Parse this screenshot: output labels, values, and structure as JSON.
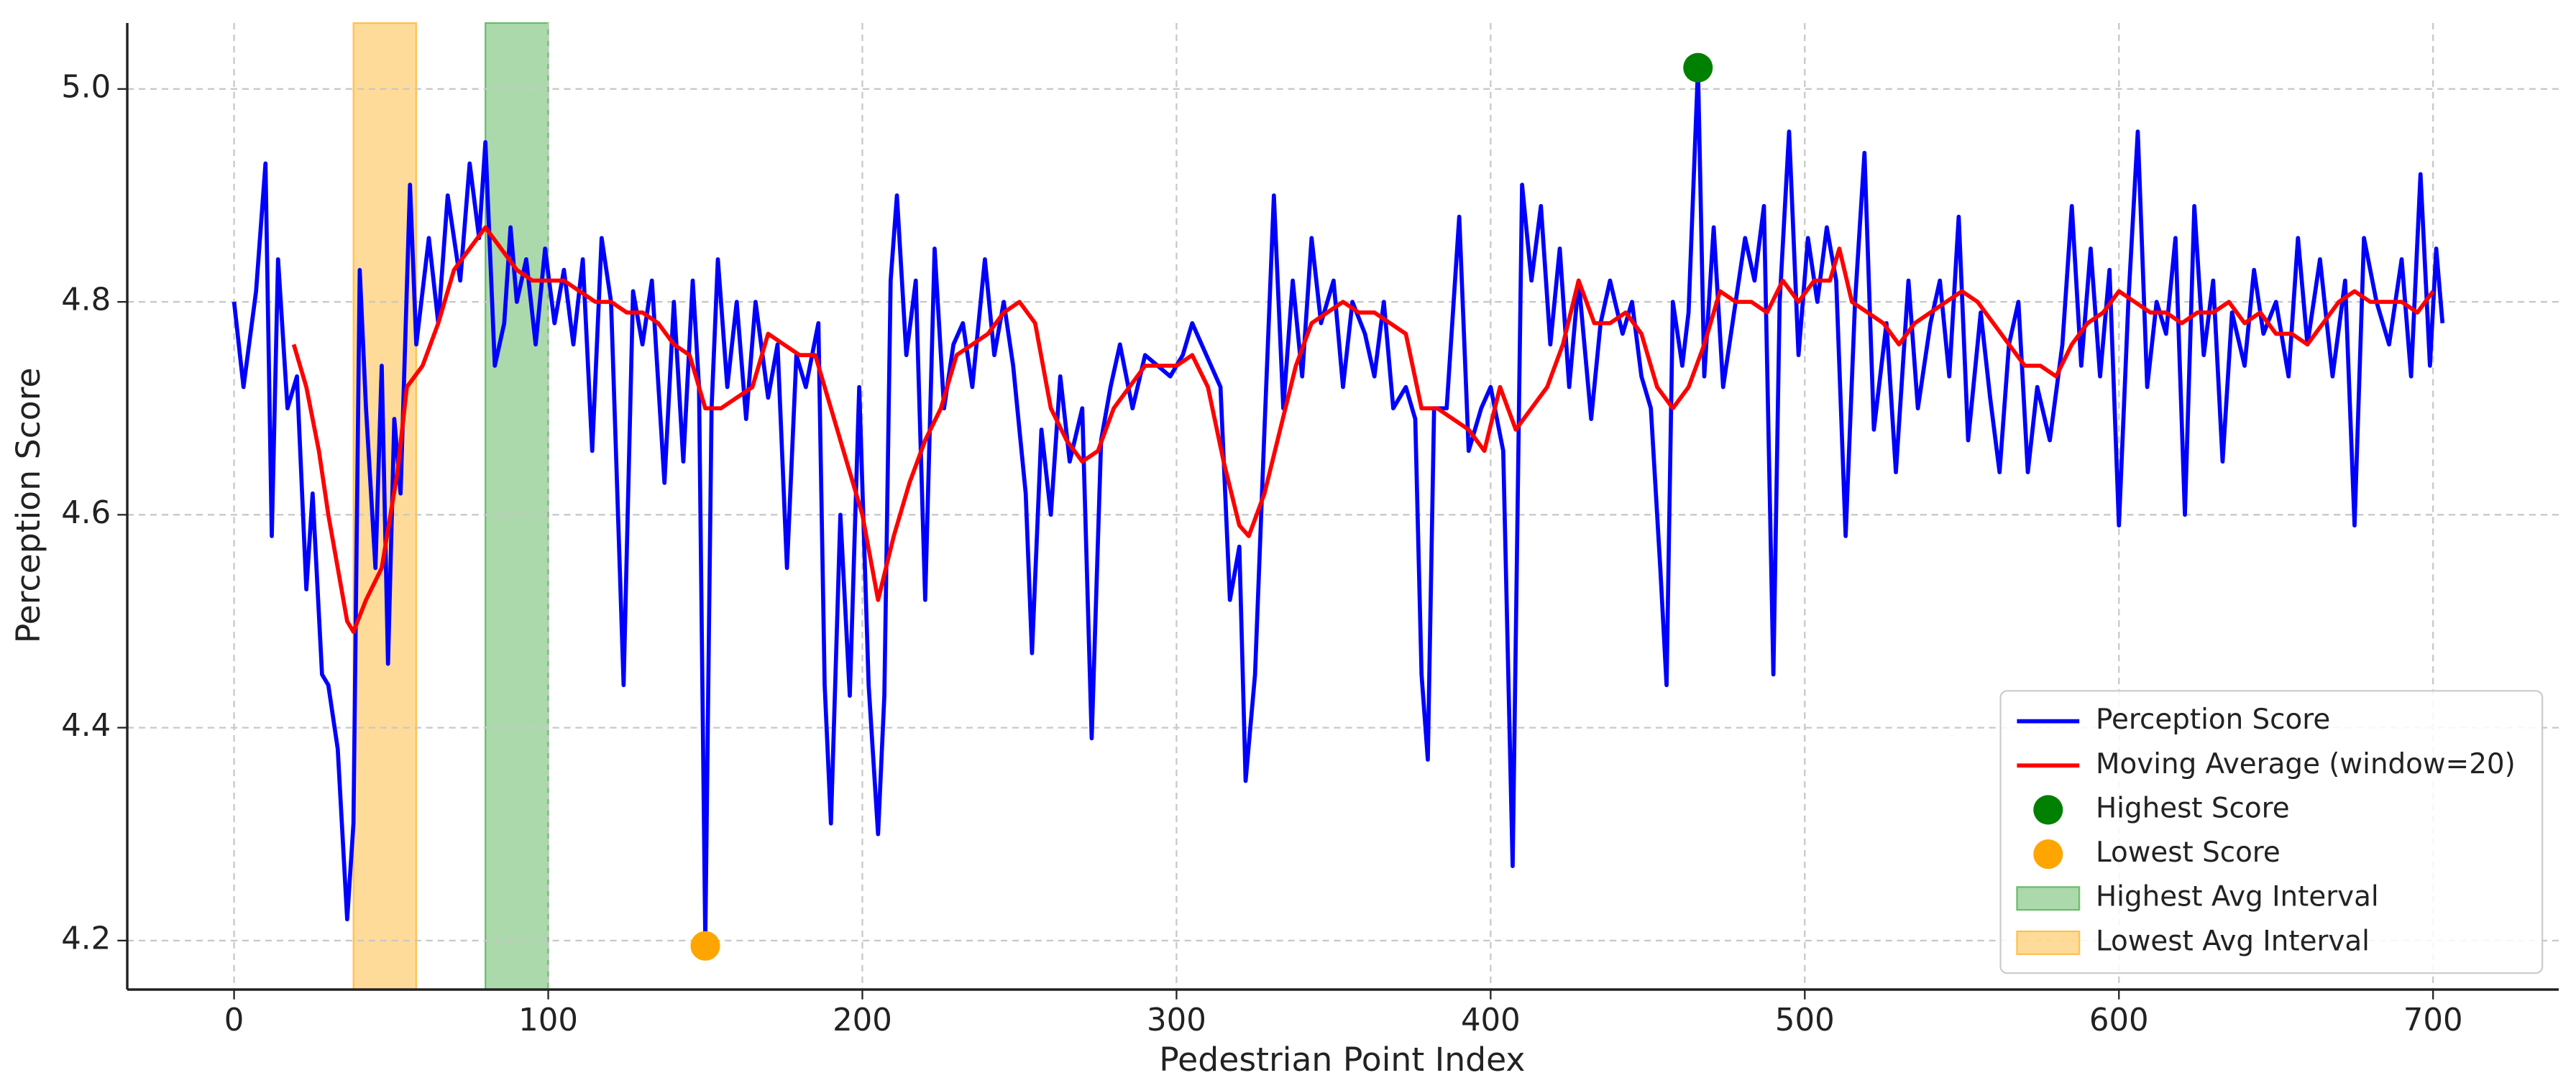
{
  "chart_data": {
    "type": "line",
    "x_label": "Pedestrian Point Index",
    "y_label": "Perception Score",
    "xlim": [
      -34,
      740
    ],
    "ylim": [
      4.154,
      5.062
    ],
    "xticks": [
      0,
      100,
      200,
      300,
      400,
      500,
      600,
      700
    ],
    "yticks": [
      4.2,
      4.4,
      4.6,
      4.8,
      {
        "value": 5,
        "label": "5.0"
      }
    ],
    "grid": true,
    "legend": "lower right",
    "series": [
      {
        "name": "Perception Score",
        "type": "line",
        "color": "#0000ff",
        "x": [
          0,
          3,
          7,
          10,
          12,
          14,
          17,
          20,
          23,
          25,
          28,
          30,
          33,
          36,
          38,
          40,
          42,
          45,
          47,
          49,
          51,
          53,
          56,
          58,
          62,
          65,
          68,
          72,
          75,
          78,
          80,
          83,
          86,
          88,
          90,
          93,
          96,
          99,
          102,
          105,
          108,
          111,
          114,
          117,
          120,
          124,
          127,
          130,
          133,
          137,
          140,
          143,
          146,
          148,
          150,
          152,
          154,
          157,
          160,
          163,
          166,
          170,
          173,
          176,
          179,
          182,
          186,
          188,
          190,
          193,
          196,
          199,
          202,
          205,
          207,
          209,
          211,
          214,
          217,
          220,
          223,
          226,
          229,
          232,
          235,
          239,
          242,
          245,
          248,
          252,
          254,
          257,
          260,
          263,
          266,
          270,
          273,
          276,
          279,
          282,
          286,
          290,
          294,
          298,
          302,
          305,
          308,
          311,
          314,
          317,
          320,
          322,
          325,
          328,
          331,
          334,
          337,
          340,
          343,
          346,
          350,
          353,
          356,
          360,
          363,
          366,
          369,
          373,
          376,
          378,
          380,
          382,
          386,
          390,
          393,
          397,
          400,
          404,
          407,
          410,
          413,
          416,
          419,
          422,
          425,
          428,
          432,
          435,
          438,
          442,
          445,
          448,
          451,
          454,
          456,
          458,
          461,
          463,
          466,
          468,
          471,
          474,
          478,
          481,
          484,
          487,
          490,
          492,
          495,
          498,
          501,
          504,
          507,
          510,
          513,
          516,
          519,
          522,
          526,
          529,
          533,
          536,
          540,
          543,
          546,
          549,
          552,
          556,
          559,
          562,
          565,
          568,
          571,
          574,
          578,
          582,
          585,
          588,
          591,
          594,
          597,
          600,
          603,
          606,
          609,
          612,
          615,
          618,
          621,
          624,
          627,
          630,
          633,
          636,
          640,
          643,
          646,
          650,
          654,
          657,
          660,
          664,
          668,
          672,
          675,
          678,
          682,
          686,
          690,
          693,
          696,
          699,
          701,
          703
        ],
        "values": [
          4.8,
          4.72,
          4.81,
          4.93,
          4.58,
          4.84,
          4.7,
          4.73,
          4.53,
          4.62,
          4.45,
          4.44,
          4.38,
          4.22,
          4.31,
          4.83,
          4.7,
          4.55,
          4.74,
          4.46,
          4.69,
          4.62,
          4.91,
          4.76,
          4.86,
          4.78,
          4.9,
          4.82,
          4.93,
          4.86,
          4.95,
          4.74,
          4.78,
          4.87,
          4.8,
          4.84,
          4.76,
          4.85,
          4.78,
          4.83,
          4.76,
          4.84,
          4.66,
          4.86,
          4.8,
          4.44,
          4.81,
          4.76,
          4.82,
          4.63,
          4.8,
          4.65,
          4.82,
          4.72,
          4.2,
          4.7,
          4.84,
          4.72,
          4.8,
          4.69,
          4.8,
          4.71,
          4.76,
          4.55,
          4.75,
          4.72,
          4.78,
          4.44,
          4.31,
          4.6,
          4.43,
          4.72,
          4.44,
          4.3,
          4.43,
          4.82,
          4.9,
          4.75,
          4.82,
          4.52,
          4.85,
          4.7,
          4.76,
          4.78,
          4.72,
          4.84,
          4.75,
          4.8,
          4.74,
          4.62,
          4.47,
          4.68,
          4.6,
          4.73,
          4.65,
          4.7,
          4.39,
          4.67,
          4.72,
          4.76,
          4.7,
          4.75,
          4.74,
          4.73,
          4.75,
          4.78,
          4.76,
          4.74,
          4.72,
          4.52,
          4.57,
          4.35,
          4.45,
          4.68,
          4.9,
          4.7,
          4.82,
          4.73,
          4.86,
          4.78,
          4.82,
          4.72,
          4.8,
          4.77,
          4.73,
          4.8,
          4.7,
          4.72,
          4.69,
          4.45,
          4.37,
          4.7,
          4.7,
          4.88,
          4.66,
          4.7,
          4.72,
          4.66,
          4.27,
          4.91,
          4.82,
          4.89,
          4.76,
          4.85,
          4.72,
          4.82,
          4.69,
          4.78,
          4.82,
          4.77,
          4.8,
          4.73,
          4.7,
          4.55,
          4.44,
          4.8,
          4.74,
          4.79,
          5.02,
          4.73,
          4.87,
          4.72,
          4.8,
          4.86,
          4.82,
          4.89,
          4.45,
          4.8,
          4.96,
          4.75,
          4.86,
          4.8,
          4.87,
          4.82,
          4.58,
          4.8,
          4.94,
          4.68,
          4.78,
          4.64,
          4.82,
          4.7,
          4.78,
          4.82,
          4.73,
          4.88,
          4.67,
          4.79,
          4.71,
          4.64,
          4.76,
          4.8,
          4.64,
          4.72,
          4.67,
          4.76,
          4.89,
          4.74,
          4.85,
          4.73,
          4.83,
          4.59,
          4.8,
          4.96,
          4.72,
          4.8,
          4.77,
          4.86,
          4.6,
          4.89,
          4.75,
          4.82,
          4.65,
          4.79,
          4.74,
          4.83,
          4.77,
          4.8,
          4.73,
          4.86,
          4.76,
          4.84,
          4.73,
          4.82,
          4.59,
          4.86,
          4.8,
          4.76,
          4.84,
          4.73,
          4.92,
          4.74,
          4.85,
          4.78
        ]
      },
      {
        "name": "Moving Average (window=20)",
        "type": "line",
        "color": "#ff0000",
        "x": [
          19,
          23,
          27,
          30,
          33,
          36,
          38,
          42,
          47,
          52,
          55,
          60,
          65,
          70,
          75,
          80,
          85,
          90,
          95,
          100,
          105,
          110,
          115,
          120,
          125,
          130,
          135,
          140,
          145,
          150,
          155,
          160,
          165,
          170,
          175,
          180,
          185,
          190,
          195,
          200,
          205,
          210,
          215,
          220,
          225,
          230,
          235,
          240,
          245,
          250,
          255,
          260,
          265,
          270,
          275,
          280,
          285,
          290,
          295,
          300,
          305,
          310,
          315,
          320,
          323,
          328,
          333,
          338,
          343,
          348,
          353,
          358,
          363,
          368,
          373,
          378,
          383,
          388,
          393,
          398,
          403,
          408,
          413,
          418,
          423,
          428,
          433,
          438,
          443,
          448,
          453,
          458,
          463,
          468,
          473,
          478,
          483,
          488,
          493,
          498,
          503,
          508,
          511,
          515,
          520,
          525,
          530,
          535,
          540,
          545,
          550,
          555,
          560,
          565,
          570,
          575,
          580,
          585,
          590,
          595,
          600,
          605,
          610,
          615,
          620,
          625,
          630,
          635,
          640,
          645,
          650,
          655,
          660,
          665,
          670,
          675,
          680,
          685,
          690,
          695,
          700
        ],
        "values": [
          4.76,
          4.72,
          4.66,
          4.6,
          4.55,
          4.5,
          4.49,
          4.52,
          4.55,
          4.64,
          4.72,
          4.74,
          4.78,
          4.83,
          4.85,
          4.87,
          4.85,
          4.83,
          4.82,
          4.82,
          4.82,
          4.81,
          4.8,
          4.8,
          4.79,
          4.79,
          4.78,
          4.76,
          4.75,
          4.7,
          4.7,
          4.71,
          4.72,
          4.77,
          4.76,
          4.75,
          4.75,
          4.7,
          4.65,
          4.6,
          4.52,
          4.58,
          4.63,
          4.67,
          4.7,
          4.75,
          4.76,
          4.77,
          4.79,
          4.8,
          4.78,
          4.7,
          4.67,
          4.65,
          4.66,
          4.7,
          4.72,
          4.74,
          4.74,
          4.74,
          4.75,
          4.72,
          4.65,
          4.59,
          4.58,
          4.62,
          4.68,
          4.74,
          4.78,
          4.79,
          4.8,
          4.79,
          4.79,
          4.78,
          4.77,
          4.7,
          4.7,
          4.69,
          4.68,
          4.66,
          4.72,
          4.68,
          4.7,
          4.72,
          4.76,
          4.82,
          4.78,
          4.78,
          4.79,
          4.77,
          4.72,
          4.7,
          4.72,
          4.76,
          4.81,
          4.8,
          4.8,
          4.79,
          4.82,
          4.8,
          4.82,
          4.82,
          4.85,
          4.8,
          4.79,
          4.78,
          4.76,
          4.78,
          4.79,
          4.8,
          4.81,
          4.8,
          4.78,
          4.76,
          4.74,
          4.74,
          4.73,
          4.76,
          4.78,
          4.79,
          4.81,
          4.8,
          4.79,
          4.79,
          4.78,
          4.79,
          4.79,
          4.8,
          4.78,
          4.79,
          4.77,
          4.77,
          4.76,
          4.78,
          4.8,
          4.81,
          4.8,
          4.8,
          4.8,
          4.79,
          4.81
        ]
      },
      {
        "name": "Highest Score",
        "type": "scatter",
        "color": "#008000",
        "x": [
          466
        ],
        "values": [
          5.02
        ]
      },
      {
        "name": "Lowest Score",
        "type": "scatter",
        "color": "#ffa500",
        "x": [
          150
        ],
        "values": [
          4.195
        ]
      }
    ],
    "intervals": [
      {
        "name": "Highest Avg Interval",
        "color": "#2ca02c",
        "range": [
          80,
          100
        ]
      },
      {
        "name": "Lowest Avg Interval",
        "color": "#ffa500",
        "range": [
          38,
          58
        ]
      }
    ]
  }
}
